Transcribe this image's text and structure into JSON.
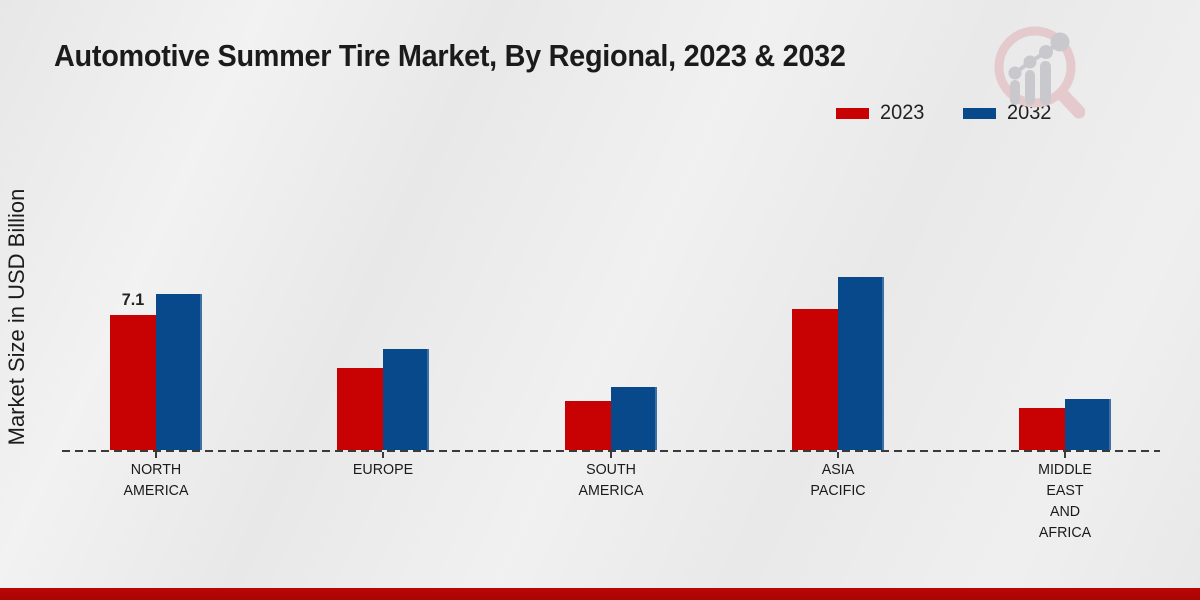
{
  "page": {
    "title": "Automotive Summer Tire Market, By Regional, 2023 & 2032",
    "ylabel": "Market Size in USD Billion",
    "background_color": "#e7e7e7",
    "footer_stripe_color": "#b00505"
  },
  "legend": [
    {
      "label": "2023",
      "color": "#c80202"
    },
    {
      "label": "2032",
      "color": "#07498a"
    }
  ],
  "watermark_icon": "market-research-magnifier-logo",
  "chart_data": {
    "type": "bar",
    "title": "Automotive Summer Tire Market, By Regional, 2023 & 2032",
    "xlabel": "",
    "ylabel": "Market Size in USD Billion",
    "categories": [
      "NORTH AMERICA",
      "EUROPE",
      "SOUTH AMERICA",
      "ASIA PACIFIC",
      "MIDDLE EAST AND AFRICA"
    ],
    "tick_labels": [
      "NORTH\nAMERICA",
      "EUROPE",
      "SOUTH\nAMERICA",
      "ASIA\nPACIFIC",
      "MIDDLE\nEAST\nAND\nAFRICA"
    ],
    "series": [
      {
        "name": "2023",
        "color": "#c80202",
        "values": [
          7.1,
          4.3,
          2.6,
          7.4,
          2.2
        ],
        "data_labels": [
          "7.1",
          "",
          "",
          "",
          ""
        ]
      },
      {
        "name": "2032",
        "color": "#07498a",
        "values": [
          8.2,
          5.3,
          3.3,
          9.1,
          2.7
        ],
        "data_labels": [
          "",
          "",
          "",
          "",
          ""
        ]
      }
    ],
    "ylim": [
      0,
      9.5
    ],
    "grid": false,
    "y_axis_visible": false,
    "baseline_style": "dashed",
    "legend_position": "top-right"
  }
}
